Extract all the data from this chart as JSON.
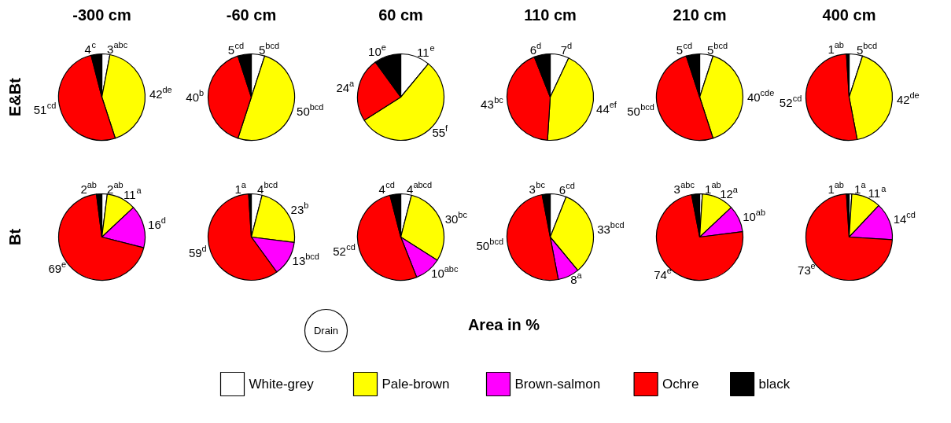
{
  "chart_data": [
    {
      "type": "pie",
      "title": "-300 cm",
      "ylabel": "E&Bt",
      "categories": [
        null,
        null,
        null,
        null
      ],
      "values": [
        3,
        42,
        51,
        4
      ],
      "colors": [
        "#ffffff",
        "#ffff00",
        "#ff0000",
        "#000000"
      ],
      "value_labels": [
        "3$^{abc}$",
        "42$^{de}$",
        "51$^{cd}$",
        "4$^{c}$"
      ]
    },
    {
      "type": "pie",
      "title": "-60 cm",
      "categories": [
        null,
        null,
        null,
        null
      ],
      "values": [
        5,
        50,
        40,
        5
      ],
      "colors": [
        "#ffffff",
        "#ffff00",
        "#ff0000",
        "#000000"
      ],
      "value_labels": [
        "5$^{bcd}$",
        "50$^{bcd}$",
        "40$^{b}$",
        "5$^{cd}$"
      ]
    },
    {
      "type": "pie",
      "title": "60 cm",
      "categories": [
        null,
        null,
        null,
        null
      ],
      "values": [
        11,
        55,
        24,
        10
      ],
      "colors": [
        "#ffffff",
        "#ffff00",
        "#ff0000",
        "#000000"
      ],
      "value_labels": [
        "11$^{e}$",
        "55$^{f}$",
        "24$^{a}$",
        "10$^{e}$"
      ]
    },
    {
      "type": "pie",
      "title": "110 cm",
      "categories": [
        null,
        null,
        null,
        null
      ],
      "values": [
        7,
        44,
        43,
        6
      ],
      "colors": [
        "#ffffff",
        "#ffff00",
        "#ff0000",
        "#000000"
      ],
      "value_labels": [
        "7$^{d}$",
        "44$^{ef}$",
        "43$^{bc}$",
        "6$^{d}$"
      ]
    },
    {
      "type": "pie",
      "title": "210 cm",
      "categories": [
        null,
        null,
        null,
        null
      ],
      "values": [
        5,
        40,
        50,
        5
      ],
      "colors": [
        "#ffffff",
        "#ffff00",
        "#ff0000",
        "#000000"
      ],
      "value_labels": [
        "5$^{bcd}$",
        "40$^{cde}$",
        "50$^{bcd}$",
        "5$^{cd}$"
      ]
    },
    {
      "type": "pie",
      "title": "400 cm",
      "categories": [
        null,
        null,
        null,
        null
      ],
      "values": [
        5,
        42,
        52,
        1
      ],
      "colors": [
        "#ffffff",
        "#ffff00",
        "#ff0000",
        "#000000"
      ],
      "value_labels": [
        "5$^{bcd}$",
        "42$^{de}$",
        "52$^{cd}$",
        "1$^{ab}$"
      ]
    },
    {
      "type": "pie",
      "ylabel": "Bt",
      "categories": [
        "White-grey",
        "Pale-brown",
        "Brown-salmon",
        "Ochre",
        "black"
      ],
      "values": [
        2,
        11,
        16,
        69,
        2
      ],
      "colors": [
        "#ffffff",
        "#ffff00",
        "#ff00ff",
        "#ff0000",
        "#000000"
      ],
      "value_labels": [
        "2$^{ab}$",
        "11$^{a}$",
        "16$^{d}$",
        "69$^{e}$",
        "2$^{ab}$"
      ],
      "legend": "bottom",
      "annotations": [
        "Area in %",
        "Drain"
      ]
    },
    {
      "type": "pie",
      "categories": [
        null,
        null,
        null,
        null,
        null
      ],
      "values": [
        4,
        23,
        13,
        59,
        1
      ],
      "colors": [
        "#ffffff",
        "#ffff00",
        "#ff00ff",
        "#ff0000",
        "#000000"
      ],
      "value_labels": [
        "4$^{bcd}$",
        "23$^{b}$",
        "13$^{bcd}$",
        "59$^{d}$",
        "1$^{a}$"
      ]
    },
    {
      "type": "pie",
      "categories": [
        null,
        null,
        null,
        null,
        null
      ],
      "values": [
        4,
        30,
        10,
        52,
        4
      ],
      "colors": [
        "#ffffff",
        "#ffff00",
        "#ff00ff",
        "#ff0000",
        "#000000"
      ],
      "value_labels": [
        "4$^{abcd}$",
        "30$^{bc}$",
        "10$^{abc}$",
        "52$^{cd}$",
        "4$^{cd}$"
      ]
    },
    {
      "type": "pie",
      "categories": [
        null,
        null,
        null,
        null,
        null
      ],
      "values": [
        6,
        33,
        8,
        50,
        3
      ],
      "colors": [
        "#ffffff",
        "#ffff00",
        "#ff00ff",
        "#ff0000",
        "#000000"
      ],
      "value_labels": [
        "6$^{cd}$",
        "33$^{bcd}$",
        "8$^{a}$",
        "50$^{bcd}$",
        "3$^{bc}$"
      ]
    },
    {
      "type": "pie",
      "categories": [
        null,
        null,
        null,
        null,
        null
      ],
      "values": [
        1,
        12,
        10,
        74,
        3
      ],
      "colors": [
        "#ffffff",
        "#ffff00",
        "#ff00ff",
        "#ff0000",
        "#000000"
      ],
      "value_labels": [
        "1$^{ab}$",
        "12$^{a}$",
        "10$^{ab}$",
        "74$^{e}$",
        "3$^{abc}$"
      ]
    },
    {
      "type": "pie",
      "categories": [
        null,
        null,
        null,
        null,
        null
      ],
      "values": [
        1,
        11,
        14,
        73,
        1
      ],
      "colors": [
        "#ffffff",
        "#ffff00",
        "#ff00ff",
        "#ff0000",
        "#000000"
      ],
      "value_labels": [
        "1$^{a}$",
        "11$^{a}$",
        "14$^{cd}$",
        "73$^{e}$",
        "1$^{ab}$"
      ]
    }
  ]
}
